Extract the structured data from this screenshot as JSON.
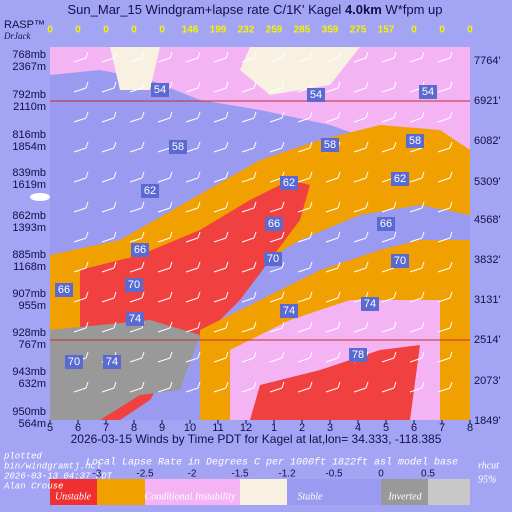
{
  "title": {
    "prefix": "Sun_Mar_15 Windgram+lapse rate C/1K'  Kagel ",
    "bold": "4.0km",
    "suffix": "  W*fpm up"
  },
  "brand": [
    "RASP™",
    "DrJack"
  ],
  "top_values": [
    0,
    0,
    0,
    0,
    0,
    146,
    199,
    232,
    259,
    285,
    359,
    275,
    157,
    0,
    0,
    0
  ],
  "levels": [
    {
      "mb": "768mb",
      "m": "2367m"
    },
    {
      "mb": "792mb",
      "m": "2110m"
    },
    {
      "mb": "816mb",
      "m": "1854m"
    },
    {
      "mb": "839mb",
      "m": "1619m"
    },
    {
      "mb": "862mb",
      "m": "1393m"
    },
    {
      "mb": "885mb",
      "m": "1168m"
    },
    {
      "mb": "907mb",
      "m": "955m"
    },
    {
      "mb": "928mb",
      "m": "767m"
    },
    {
      "mb": "943mb",
      "m": "632m"
    },
    {
      "mb": "950mb",
      "m": "564m"
    }
  ],
  "feet": [
    "7764'",
    "6921'",
    "6082'",
    "5309'",
    "4568'",
    "3832'",
    "3131'",
    "2514'",
    "2073'",
    "1849'"
  ],
  "hours": [
    5,
    6,
    7,
    8,
    9,
    10,
    11,
    12,
    1,
    2,
    3,
    4,
    5,
    6,
    7,
    8
  ],
  "x_title": "2026-03-15 Winds by Time PDT for Kagel at lat,lon= 34.333, -118.385",
  "contour_labels": [
    54,
    54,
    54,
    58,
    58,
    58,
    62,
    62,
    62,
    66,
    66,
    66,
    70,
    70,
    70,
    74,
    74,
    74,
    78,
    74,
    70,
    66
  ],
  "footer": {
    "left": [
      "plotted",
      "bin/windgramtj.ncl",
      "2026-03-13 04:37 PDT",
      "Alan Crouse"
    ],
    "center": "Local Lapse Rate in Degrees C per 1000ft  1822ft asl model base",
    "right": [
      "rhcut",
      "95%"
    ]
  },
  "legend": {
    "ticks": [
      -3,
      -2.5,
      -2,
      -1.5,
      -1.2,
      -0.5,
      0,
      0.5
    ],
    "labels": [
      "Unstable",
      "Conditional Instability",
      "Stable",
      "Inverted"
    ]
  }
}
